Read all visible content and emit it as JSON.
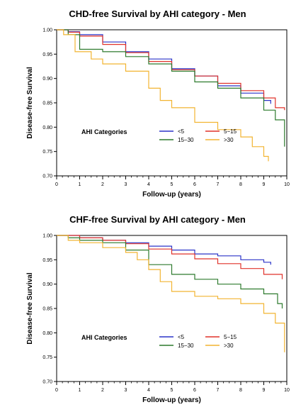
{
  "colors": {
    "lt5": "#2b34c8",
    "5to15": "#e0322a",
    "15to30": "#2d7a2d",
    "gt30": "#f2b431"
  },
  "chart_data": [
    {
      "type": "line",
      "title": "CHD-free Survival by AHI category - Men",
      "xlabel": "Follow-up (years)",
      "ylabel": "Disease-free Survival",
      "xlim": [
        0,
        10
      ],
      "ylim": [
        0.7,
        1.0
      ],
      "x_ticks": [
        "0",
        "1",
        "2",
        "3",
        "4",
        "5",
        "6",
        "7",
        "8",
        "9",
        "10"
      ],
      "y_ticks": [
        "0.70",
        "0.75",
        "0.80",
        "0.85",
        "0.90",
        "0.95",
        "1.00"
      ],
      "legend_title": "AHI Categories",
      "legend_position": "bottom-left",
      "series": [
        {
          "name": "<5",
          "color": "#2b34c8",
          "points": [
            [
              0,
              1.0
            ],
            [
              0.5,
              0.996
            ],
            [
              1,
              0.99
            ],
            [
              2,
              0.975
            ],
            [
              3,
              0.955
            ],
            [
              4,
              0.94
            ],
            [
              5,
              0.92
            ],
            [
              6,
              0.905
            ],
            [
              7,
              0.885
            ],
            [
              8,
              0.87
            ],
            [
              9,
              0.855
            ],
            [
              9.3,
              0.848
            ]
          ]
        },
        {
          "name": "5−15",
          "color": "#e0322a",
          "points": [
            [
              0,
              1.0
            ],
            [
              0.5,
              0.995
            ],
            [
              1,
              0.987
            ],
            [
              2,
              0.97
            ],
            [
              3,
              0.953
            ],
            [
              4,
              0.935
            ],
            [
              5,
              0.918
            ],
            [
              6,
              0.905
            ],
            [
              7,
              0.89
            ],
            [
              8,
              0.875
            ],
            [
              9,
              0.86
            ],
            [
              9.5,
              0.84
            ],
            [
              9.9,
              0.835
            ]
          ]
        },
        {
          "name": "15−30",
          "color": "#2d7a2d",
          "points": [
            [
              0,
              1.0
            ],
            [
              0.5,
              0.99
            ],
            [
              1,
              0.96
            ],
            [
              2,
              0.955
            ],
            [
              3,
              0.945
            ],
            [
              4,
              0.93
            ],
            [
              5,
              0.915
            ],
            [
              6,
              0.893
            ],
            [
              7,
              0.88
            ],
            [
              8,
              0.86
            ],
            [
              9,
              0.835
            ],
            [
              9.5,
              0.815
            ],
            [
              9.9,
              0.76
            ]
          ]
        },
        {
          "name": ">30",
          "color": "#f2b431",
          "points": [
            [
              0,
              1.0
            ],
            [
              0.3,
              0.99
            ],
            [
              0.8,
              0.955
            ],
            [
              1.5,
              0.94
            ],
            [
              2,
              0.93
            ],
            [
              3,
              0.915
            ],
            [
              4,
              0.88
            ],
            [
              4.5,
              0.855
            ],
            [
              5,
              0.84
            ],
            [
              6,
              0.81
            ],
            [
              7,
              0.795
            ],
            [
              8,
              0.78
            ],
            [
              8.5,
              0.76
            ],
            [
              9,
              0.74
            ],
            [
              9.2,
              0.73
            ]
          ]
        }
      ]
    },
    {
      "type": "line",
      "title": "CHF-free Survival by AHI category - Men",
      "xlabel": "Follow-up (years)",
      "ylabel": "Disease-free Survival",
      "xlim": [
        0,
        10
      ],
      "ylim": [
        0.7,
        1.0
      ],
      "x_ticks": [
        "0",
        "1",
        "2",
        "3",
        "4",
        "5",
        "6",
        "7",
        "8",
        "9",
        "10"
      ],
      "y_ticks": [
        "0.70",
        "0.75",
        "0.80",
        "0.85",
        "0.90",
        "0.95",
        "1.00"
      ],
      "legend_title": "AHI Categories",
      "legend_position": "bottom-left",
      "series": [
        {
          "name": "<5",
          "color": "#2b34c8",
          "points": [
            [
              0,
              1.0
            ],
            [
              1,
              0.995
            ],
            [
              2,
              0.99
            ],
            [
              3,
              0.985
            ],
            [
              4,
              0.978
            ],
            [
              5,
              0.97
            ],
            [
              6,
              0.962
            ],
            [
              7,
              0.958
            ],
            [
              8,
              0.95
            ],
            [
              9,
              0.945
            ],
            [
              9.3,
              0.94
            ]
          ]
        },
        {
          "name": "5−15",
          "color": "#e0322a",
          "points": [
            [
              0,
              1.0
            ],
            [
              1,
              0.995
            ],
            [
              2,
              0.99
            ],
            [
              3,
              0.983
            ],
            [
              4,
              0.972
            ],
            [
              5,
              0.962
            ],
            [
              6,
              0.952
            ],
            [
              7,
              0.942
            ],
            [
              8,
              0.932
            ],
            [
              9,
              0.92
            ],
            [
              9.8,
              0.91
            ]
          ]
        },
        {
          "name": "15−30",
          "color": "#2d7a2d",
          "points": [
            [
              0,
              1.0
            ],
            [
              0.5,
              0.995
            ],
            [
              1,
              0.99
            ],
            [
              2,
              0.985
            ],
            [
              3,
              0.97
            ],
            [
              4,
              0.94
            ],
            [
              5,
              0.92
            ],
            [
              6,
              0.91
            ],
            [
              7,
              0.9
            ],
            [
              8,
              0.89
            ],
            [
              9,
              0.88
            ],
            [
              9.6,
              0.86
            ],
            [
              9.8,
              0.85
            ]
          ]
        },
        {
          "name": ">30",
          "color": "#f2b431",
          "points": [
            [
              0,
              1.0
            ],
            [
              0.5,
              0.99
            ],
            [
              1,
              0.985
            ],
            [
              2,
              0.975
            ],
            [
              3,
              0.965
            ],
            [
              3.5,
              0.95
            ],
            [
              4,
              0.93
            ],
            [
              4.5,
              0.905
            ],
            [
              5,
              0.885
            ],
            [
              6,
              0.875
            ],
            [
              7,
              0.87
            ],
            [
              8,
              0.86
            ],
            [
              9,
              0.84
            ],
            [
              9.5,
              0.82
            ],
            [
              9.9,
              0.76
            ]
          ]
        }
      ]
    }
  ]
}
